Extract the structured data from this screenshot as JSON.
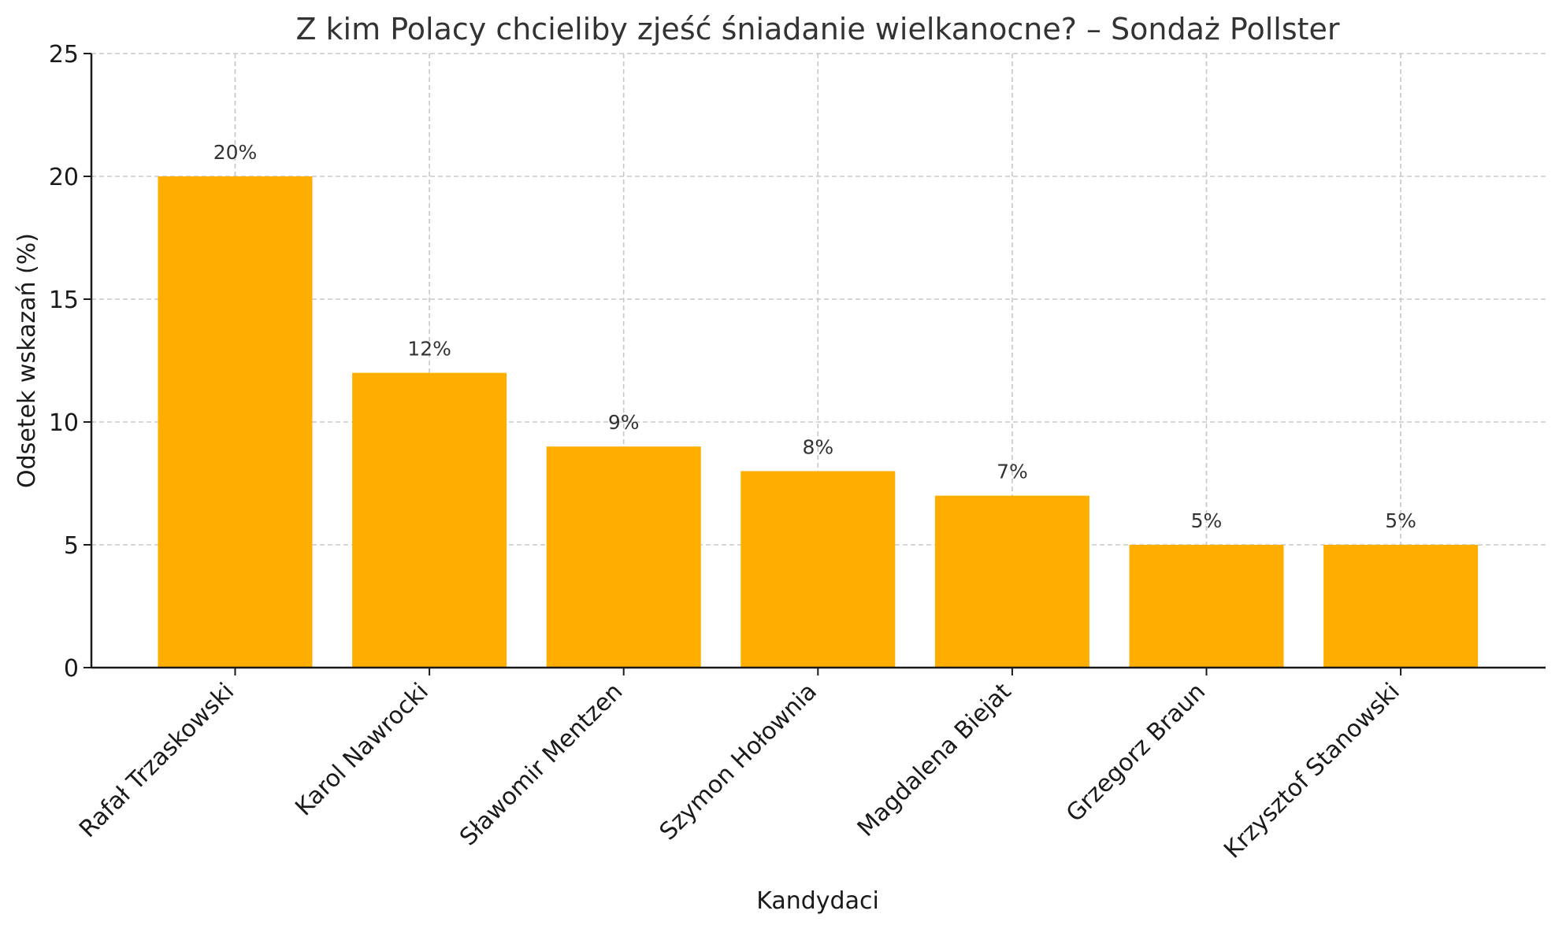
{
  "chart_data": {
    "type": "bar",
    "title": "Z kim Polacy chcieliby zjeść śniadanie wielkanocne? – Sondaż Pollster",
    "xlabel": "Kandydaci",
    "ylabel": "Odsetek wskazań (%)",
    "categories": [
      "Rafał Trzaskowski",
      "Karol Nawrocki",
      "Sławomir Mentzen",
      "Szymon Hołownia",
      "Magdalena Biejat",
      "Grzegorz Braun",
      "Krzysztof Stanowski"
    ],
    "values": [
      20,
      12,
      9,
      8,
      7,
      5,
      5
    ],
    "value_labels": [
      "20%",
      "12%",
      "9%",
      "8%",
      "7%",
      "5%",
      "5%"
    ],
    "ylim": [
      0,
      25
    ],
    "yticks": [
      0,
      5,
      10,
      15,
      20,
      25
    ],
    "ytick_labels": [
      "0",
      "5",
      "10",
      "15",
      "20",
      "25"
    ],
    "bar_color": "#FFAE00",
    "grid": true
  }
}
